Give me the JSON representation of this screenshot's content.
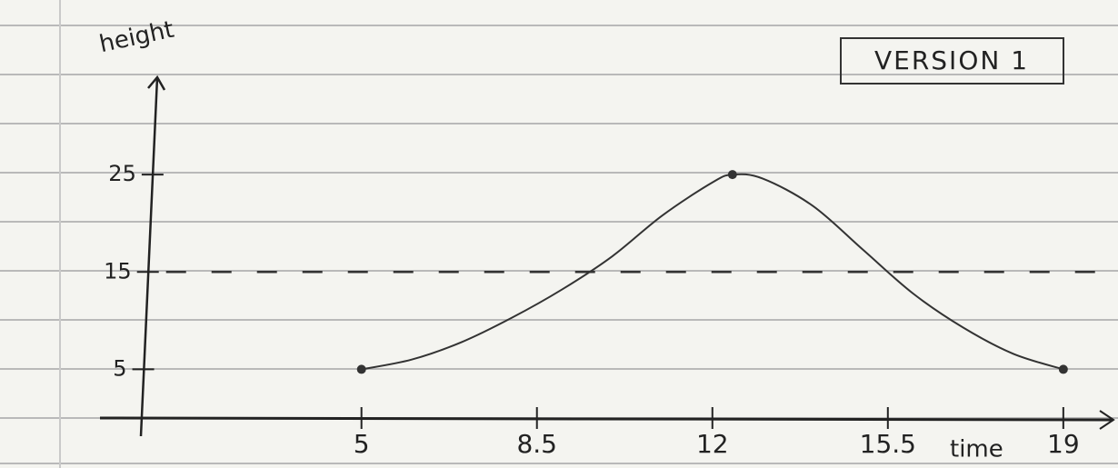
{
  "chart_data": {
    "type": "line",
    "title": "VERSION 1",
    "x_label": "time",
    "y_label": "height",
    "x": [
      5,
      6,
      7,
      8,
      9,
      10,
      11,
      12,
      12.4,
      13,
      14,
      15,
      16,
      17,
      18,
      19
    ],
    "values": [
      5,
      6,
      7.8,
      10.3,
      13.2,
      16.6,
      20.8,
      24.2,
      25,
      24.6,
      21.8,
      17.3,
      12.8,
      9.3,
      6.6,
      5
    ],
    "color": "#333333",
    "reference_line": 15,
    "xlim": [
      0.6,
      20
    ],
    "ylim": [
      0,
      35
    ],
    "xticks": [
      5,
      8.5,
      12,
      15.5,
      19
    ],
    "yticks": [
      5,
      15,
      25
    ]
  }
}
